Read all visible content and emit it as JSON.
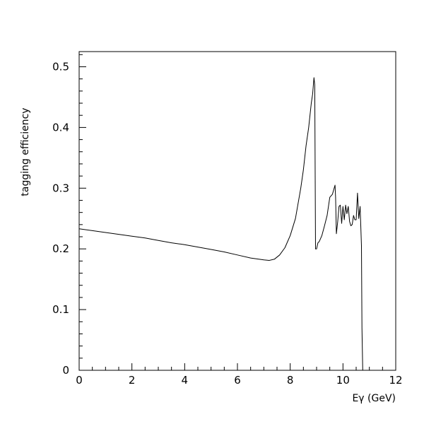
{
  "chart_data": {
    "type": "line",
    "title": "",
    "xlabel": "Eγ (GeV)",
    "ylabel": "tagging efficiency",
    "xlim": [
      0,
      12
    ],
    "ylim": [
      0,
      0.525
    ],
    "x_ticks": [
      0,
      2,
      4,
      6,
      8,
      10,
      12
    ],
    "x_tick_labels": [
      "0",
      "2",
      "4",
      "6",
      "8",
      "10",
      "12"
    ],
    "y_ticks": [
      0,
      0.1,
      0.2,
      0.3,
      0.4,
      0.5
    ],
    "y_tick_labels": [
      "0",
      "0.1",
      "0.2",
      "0.3",
      "0.4",
      "0.5"
    ],
    "grid": false,
    "legend": "none",
    "series": [
      {
        "color": "#000000",
        "x": [
          0,
          0.5,
          1,
          1.5,
          2,
          2.5,
          3,
          3.5,
          4,
          4.5,
          5,
          5.5,
          6,
          6.5,
          7,
          7.2,
          7.4,
          7.6,
          7.8,
          8.0,
          8.2,
          8.4,
          8.5,
          8.6,
          8.7,
          8.8,
          8.85,
          8.9,
          8.93,
          8.96,
          9.0,
          9.05,
          9.1,
          9.2,
          9.3,
          9.4,
          9.5,
          9.6,
          9.7,
          9.72,
          9.75,
          9.8,
          9.85,
          9.9,
          9.95,
          10.0,
          10.05,
          10.1,
          10.15,
          10.2,
          10.25,
          10.3,
          10.35,
          10.4,
          10.45,
          10.5,
          10.55,
          10.6,
          10.65,
          10.7,
          10.72,
          10.75,
          10.78,
          10.8,
          10.82,
          10.84
        ],
        "y": [
          0.233,
          0.23,
          0.227,
          0.224,
          0.221,
          0.218,
          0.214,
          0.21,
          0.207,
          0.203,
          0.199,
          0.195,
          0.19,
          0.185,
          0.182,
          0.181,
          0.183,
          0.19,
          0.202,
          0.222,
          0.25,
          0.3,
          0.33,
          0.37,
          0.4,
          0.44,
          0.455,
          0.482,
          0.47,
          0.2,
          0.2,
          0.21,
          0.212,
          0.222,
          0.238,
          0.255,
          0.285,
          0.29,
          0.305,
          0.285,
          0.225,
          0.245,
          0.27,
          0.272,
          0.242,
          0.27,
          0.248,
          0.272,
          0.258,
          0.27,
          0.245,
          0.238,
          0.24,
          0.255,
          0.248,
          0.248,
          0.292,
          0.25,
          0.27,
          0.205,
          0.07,
          0.0,
          0.0,
          0.0,
          0.0,
          0.0
        ]
      }
    ]
  }
}
